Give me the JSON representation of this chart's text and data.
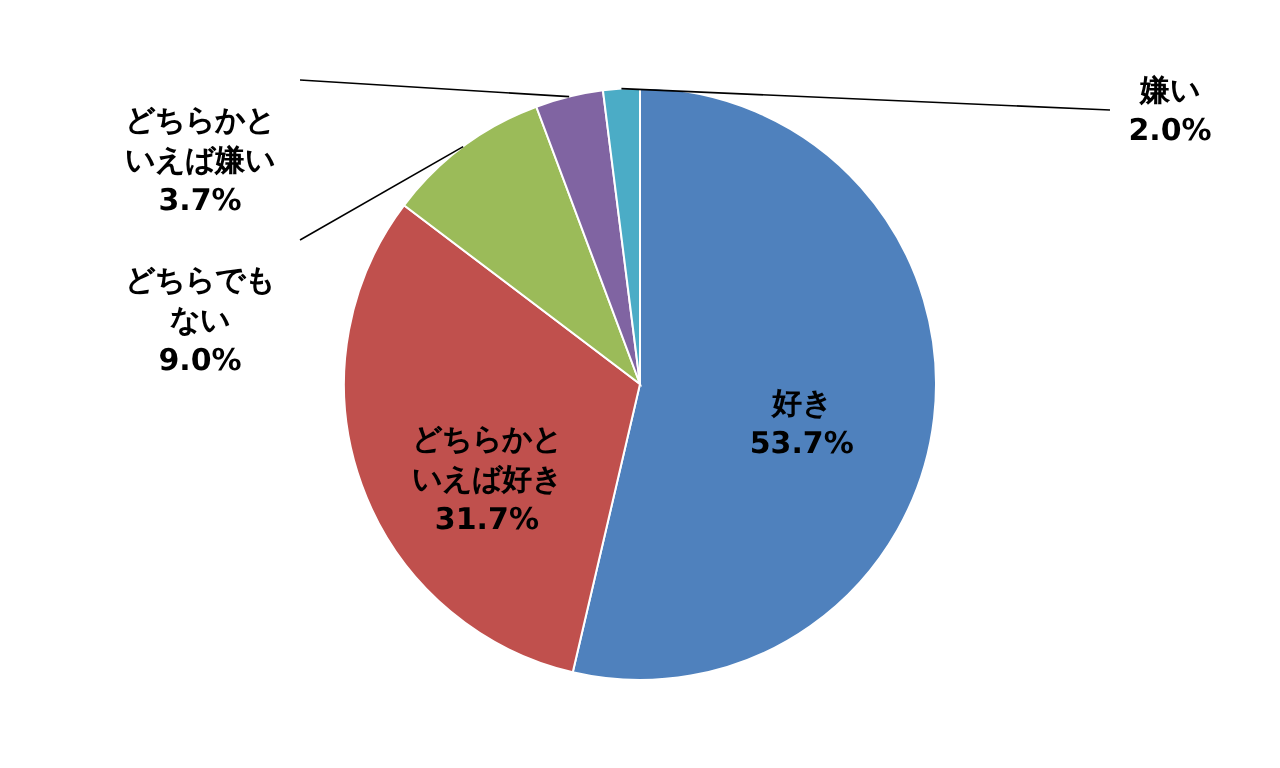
{
  "chart_data": {
    "type": "pie",
    "categories": [
      "好き",
      "どちらかといえば好き",
      "どちらでもない",
      "どちらかといえば嫌い",
      "嫌い"
    ],
    "values": [
      53.7,
      31.7,
      9.0,
      3.7,
      2.0
    ],
    "value_labels": [
      "53.7%",
      "31.7%",
      "9.0%",
      "3.7%",
      "2.0%"
    ],
    "colors": [
      "#4f81bd",
      "#c0504d",
      "#9bbb59",
      "#8064a2",
      "#4bacc6"
    ]
  }
}
